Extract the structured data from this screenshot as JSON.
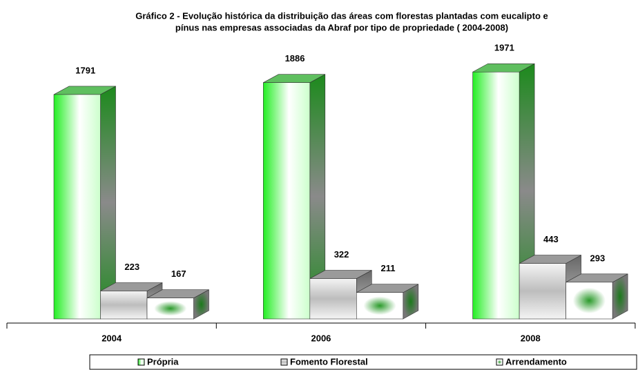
{
  "chart_data": {
    "type": "bar3d",
    "title": [
      "Gráfico 2 - Evolução histórica da distribuição das áreas com florestas plantadas com eucalipto e",
      "pínus nas empresas associadas da Abraf por tipo de propriedade ( 2004-2008)"
    ],
    "categories": [
      "2004",
      "2006",
      "2008"
    ],
    "series": [
      {
        "name": "Própria",
        "color": "#22ee22",
        "values": [
          1791,
          1886,
          1971
        ]
      },
      {
        "name": "Fomento Florestal",
        "color": "#b8b8b8",
        "values": [
          223,
          322,
          443
        ]
      },
      {
        "name": "Arrendamento",
        "color": "#2a9a2a",
        "values": [
          167,
          211,
          293
        ]
      }
    ],
    "legend": "bottom"
  }
}
